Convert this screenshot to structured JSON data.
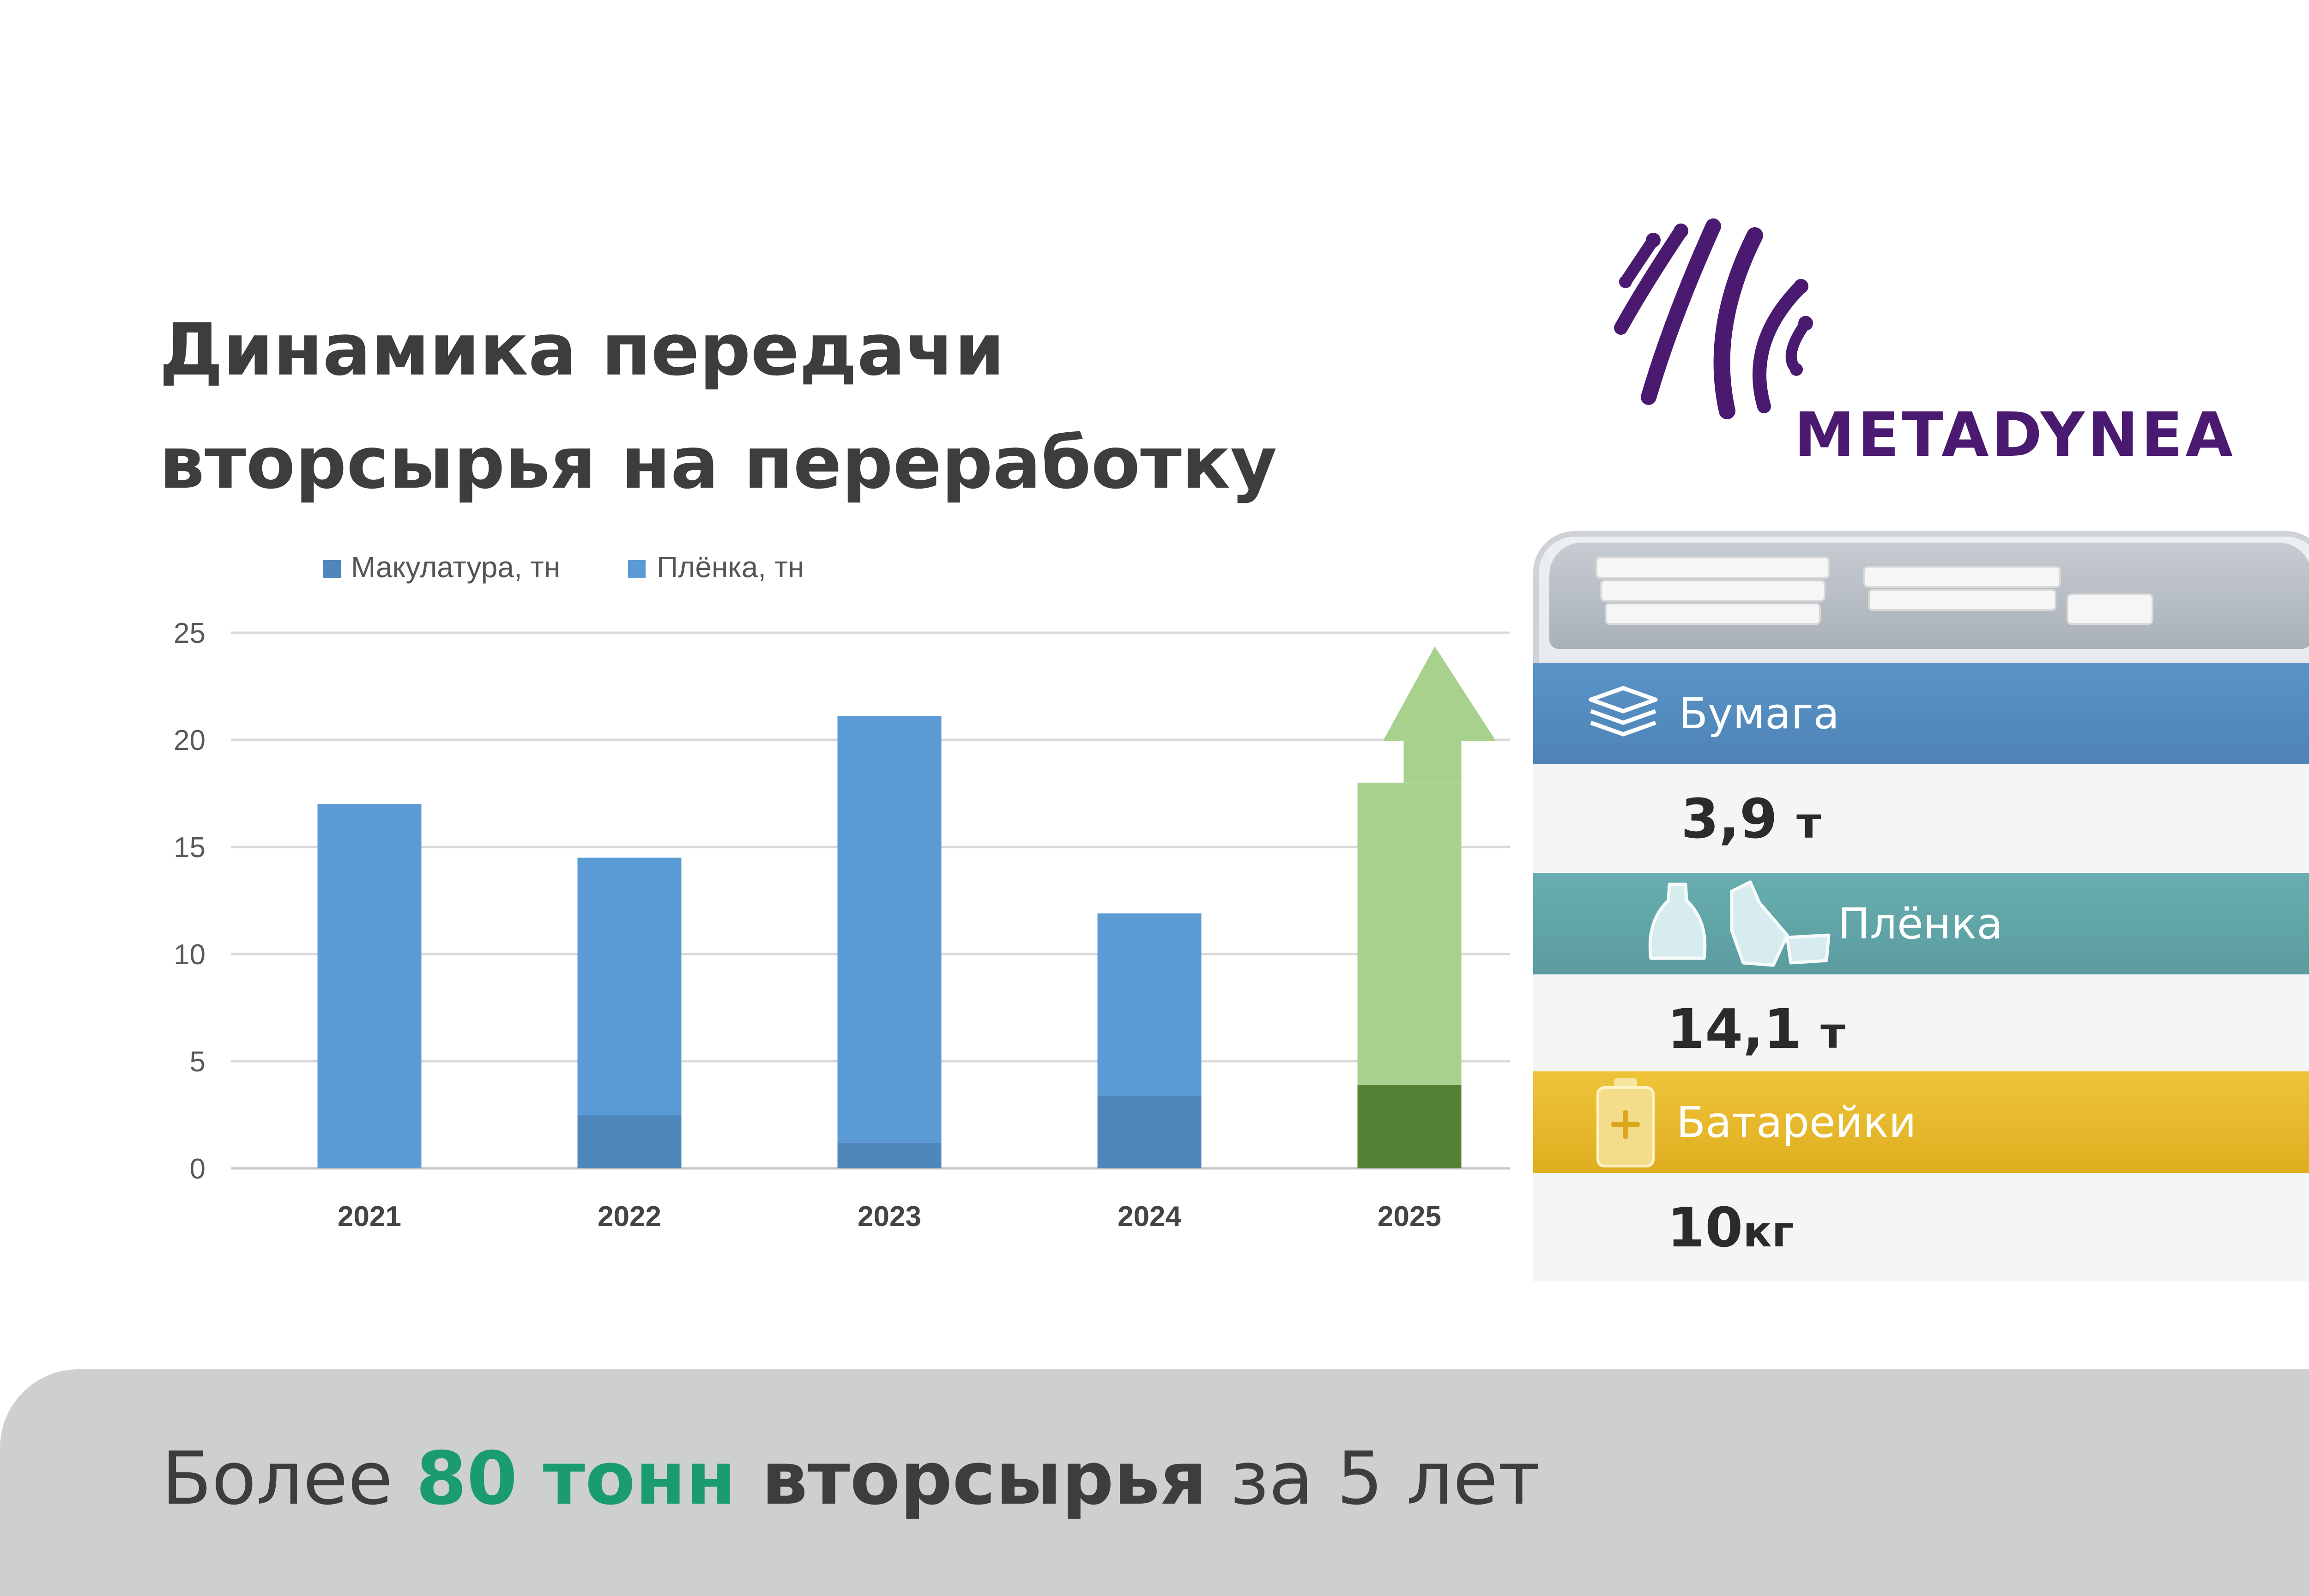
{
  "title_lines": [
    "Динамика передачи",
    "вторсырья на переработку"
  ],
  "logo": {
    "text": "METADYNEA"
  },
  "chart_data": {
    "type": "bar",
    "stacked": true,
    "categories": [
      "2021",
      "2022",
      "2023",
      "2024",
      "2025"
    ],
    "series": [
      {
        "name": "Макулатура, тн",
        "values": [
          0,
          2.5,
          1.2,
          3.4,
          3.9
        ]
      },
      {
        "name": "Плёнка, тн",
        "values": [
          17,
          12.0,
          19.9,
          8.5,
          14.1
        ]
      }
    ],
    "ylim": [
      0,
      25
    ],
    "yticks": [
      0,
      5,
      10,
      15,
      20,
      25
    ],
    "grid": true,
    "legend": "top-left",
    "colors": {
      "makulatura": "#4f86bb",
      "plenka": "#5b9bd5",
      "highlight_makulatura": "#548235",
      "highlight_plenka": "#a9d18e",
      "arrow": "#a9d18e"
    },
    "highlight_category": "2025"
  },
  "bin": {
    "items": [
      {
        "label": "Бумага",
        "value": "3,9",
        "unit": "т",
        "icon": "paper-stack-icon",
        "color": "#5590c2"
      },
      {
        "label": "Плёнка",
        "value": "14,1",
        "unit": "т",
        "icon": "plastic-bottle-icon",
        "color": "#62a6a8"
      },
      {
        "label": "Батарейки",
        "value": "10",
        "unit": "кг",
        "icon": "battery-icon",
        "color": "#e6b82c"
      }
    ]
  },
  "footer": {
    "prefix": "Более ",
    "highlight": "80 тонн",
    "bold": " вторсырья",
    "suffix": " за 5 лет"
  }
}
